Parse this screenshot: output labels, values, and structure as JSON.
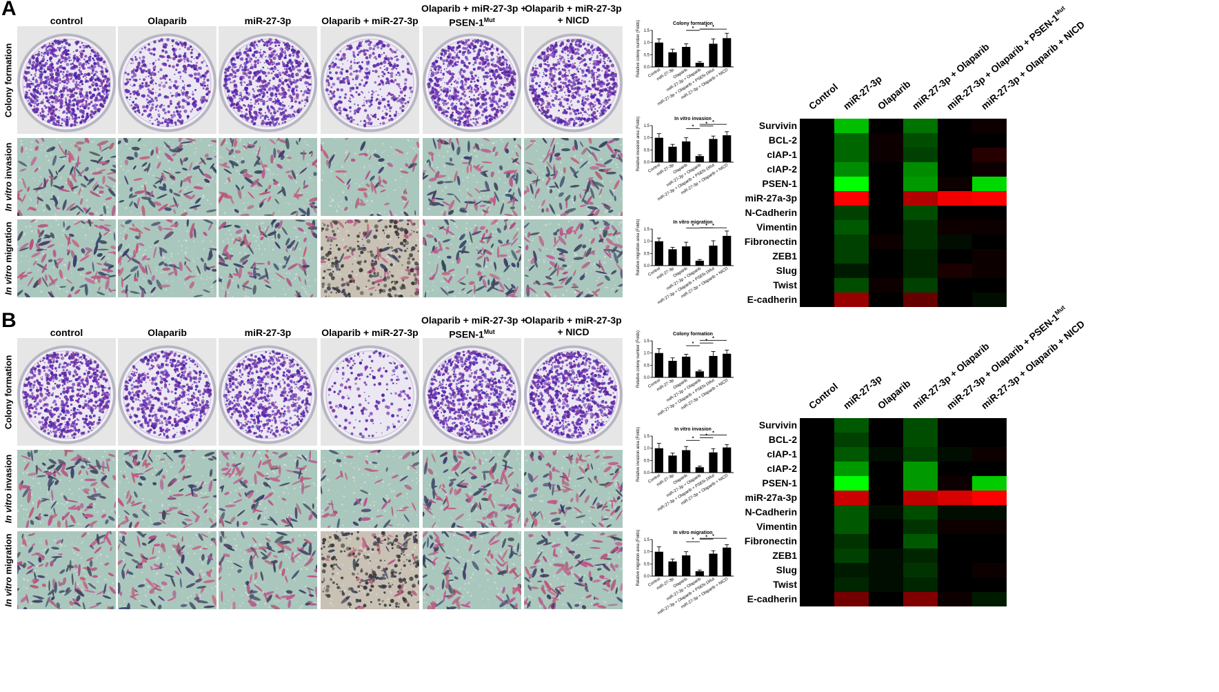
{
  "panels": [
    {
      "label": "A",
      "groups": [
        "control",
        "Olaparib",
        "miR-27-3p",
        "Olaparib + miR-27-3p",
        "Olaparib + miR-27-3p + PSEN-1Mut",
        "Olaparib + miR-27-3p + NICD"
      ],
      "group_headers": [
        {
          "l1": "",
          "l2": "control",
          "sup": ""
        },
        {
          "l1": "",
          "l2": "Olaparib",
          "sup": ""
        },
        {
          "l1": "",
          "l2": "miR-27-3p",
          "sup": ""
        },
        {
          "l1": "",
          "l2": "Olaparib + miR-27-3p",
          "sup": ""
        },
        {
          "l1": "Olaparib + miR-27-3p +",
          "l2": "PSEN-1",
          "sup": "Mut"
        },
        {
          "l1": "Olaparib + miR-27-3p",
          "l2": "+ NICD",
          "sup": ""
        }
      ],
      "row_labels": [
        {
          "pre": "",
          "em": "",
          "post": "Colony formation"
        },
        {
          "pre": "",
          "em": "In vitro",
          "post": " invasion"
        },
        {
          "pre": "",
          "em": "In vitro",
          "post": " migration"
        }
      ],
      "charts": [
        {
          "type": "bar",
          "title": "Colony formation",
          "ylabel": "Relative colony number (Folds)",
          "ylim": [
            0,
            1.5
          ],
          "yticks": [
            0.0,
            0.5,
            1.0,
            1.5
          ],
          "categories": [
            "Control",
            "miR-27-3p",
            "Olaparib",
            "miR-27-3p + Olaparib",
            "miR-27-3p + Olaparib + PSEN-1Mut",
            "miR-27-3p + Olaparib + NICD"
          ],
          "values": [
            1.0,
            0.6,
            0.82,
            0.17,
            0.95,
            1.18
          ],
          "errors": [
            0.15,
            0.13,
            0.13,
            0.05,
            0.2,
            0.2
          ],
          "significance": [
            {
              "from": 2,
              "to": 3,
              "label": "*"
            },
            {
              "from": 3,
              "to": 4,
              "label": "*"
            },
            {
              "from": 3,
              "to": 5,
              "label": "*"
            }
          ]
        },
        {
          "type": "bar",
          "title": "In vitro invasion",
          "ylabel": "Relative invasion area (Folds)",
          "ylim": [
            0,
            1.5
          ],
          "yticks": [
            0.0,
            0.5,
            1.0,
            1.5
          ],
          "categories": [
            "Control",
            "miR-27-3p",
            "Olaparib",
            "miR-27-3p + Olaparib",
            "miR-27-3p + Olaparib + PSEN-1Mut",
            "miR-27-3p + Olaparib + NICD"
          ],
          "values": [
            1.0,
            0.63,
            0.85,
            0.25,
            0.95,
            1.1
          ],
          "errors": [
            0.17,
            0.1,
            0.15,
            0.05,
            0.12,
            0.15
          ],
          "significance": [
            {
              "from": 2,
              "to": 3,
              "label": "*"
            },
            {
              "from": 3,
              "to": 4,
              "label": "*"
            },
            {
              "from": 3,
              "to": 5,
              "label": "*"
            }
          ]
        },
        {
          "type": "bar",
          "title": "In vitro migration",
          "ylabel": "Relative migration area (Folds)",
          "ylim": [
            0,
            1.5
          ],
          "yticks": [
            0.0,
            0.5,
            1.0,
            1.5
          ],
          "categories": [
            "Control",
            "miR-27-3p",
            "Olaparib",
            "miR-27-3p + Olaparib",
            "miR-27-3p + Olaparib + PSEN-1Mut",
            "miR-27-3p + Olaparib + NICD"
          ],
          "values": [
            1.0,
            0.67,
            0.79,
            0.2,
            0.82,
            1.22
          ],
          "errors": [
            0.13,
            0.08,
            0.17,
            0.05,
            0.2,
            0.2
          ],
          "significance": [
            {
              "from": 2,
              "to": 3,
              "label": "*"
            },
            {
              "from": 3,
              "to": 4,
              "label": "*"
            },
            {
              "from": 3,
              "to": 5,
              "label": "*"
            }
          ]
        }
      ],
      "heatmap": {
        "columns": [
          "Control",
          "miR-27-3p",
          "Olaparib",
          "miR-27-3p + Olaparib",
          "miR-27-3p + Olaparib + PSEN-1",
          "miR-27-3p + Olaparib + NICD"
        ],
        "column_sup": [
          "",
          "",
          "",
          "",
          "Mut",
          ""
        ],
        "rows": [
          "Survivin",
          "BCL-2",
          "cIAP-1",
          "cIAP-2",
          "PSEN-1",
          "miR-27a-3p",
          "N-Cadherin",
          "Vimentin",
          "Fibronectin",
          "ZEB1",
          "Slug",
          "Twist",
          "E-cadherin"
        ],
        "values": [
          [
            0,
            0.75,
            0,
            0.45,
            0,
            -0.05
          ],
          [
            0,
            0.4,
            -0.05,
            0.3,
            0,
            0
          ],
          [
            0,
            0.4,
            -0.05,
            0.25,
            0,
            -0.15
          ],
          [
            0,
            0.55,
            0,
            0.55,
            0,
            -0.05
          ],
          [
            0,
            1.0,
            0,
            0.6,
            -0.05,
            0.85
          ],
          [
            0,
            -1.0,
            0,
            -0.7,
            -0.95,
            -1.0
          ],
          [
            0,
            0.25,
            0,
            0.3,
            0,
            0
          ],
          [
            0,
            0.35,
            0,
            0.2,
            -0.05,
            -0.05
          ],
          [
            0,
            0.25,
            -0.05,
            0.2,
            0.05,
            0
          ],
          [
            0,
            0.25,
            0,
            0.15,
            0,
            -0.05
          ],
          [
            0,
            0.1,
            0,
            0.15,
            -0.1,
            -0.05
          ],
          [
            0,
            0.3,
            -0.05,
            0.25,
            0,
            0
          ],
          [
            0,
            -0.6,
            0,
            -0.4,
            0,
            0.05
          ]
        ]
      }
    },
    {
      "label": "B",
      "groups": [
        "control",
        "Olaparib",
        "miR-27-3p",
        "Olaparib + miR-27-3p",
        "Olaparib + miR-27-3p + PSEN-1Mut",
        "Olaparib + miR-27-3p + NICD"
      ],
      "group_headers": [
        {
          "l1": "",
          "l2": "control",
          "sup": ""
        },
        {
          "l1": "",
          "l2": "Olaparib",
          "sup": ""
        },
        {
          "l1": "",
          "l2": "miR-27-3p",
          "sup": ""
        },
        {
          "l1": "",
          "l2": "Olaparib + miR-27-3p",
          "sup": ""
        },
        {
          "l1": "Olaparib + miR-27-3p +",
          "l2": "PSEN-1",
          "sup": "Mut"
        },
        {
          "l1": "Olaparib + miR-27-3p",
          "l2": "+ NICD",
          "sup": ""
        }
      ],
      "row_labels": [
        {
          "pre": "",
          "em": "",
          "post": "Colony formation"
        },
        {
          "pre": "",
          "em": "In vitro",
          "post": " invasion"
        },
        {
          "pre": "",
          "em": "In vitro",
          "post": " migration"
        }
      ],
      "charts": [
        {
          "type": "bar",
          "title": "Colony formation",
          "ylabel": "Relative colony number (Folds)",
          "ylim": [
            0,
            1.5
          ],
          "yticks": [
            0.0,
            0.5,
            1.0,
            1.5
          ],
          "categories": [
            "Control",
            "miR-27-3p",
            "Olaparib",
            "miR-27-3p + Olaparib",
            "miR-27-3p + Olaparib + PSEN-1Mut",
            "miR-27-3p + Olaparib + NICD"
          ],
          "values": [
            1.0,
            0.68,
            0.85,
            0.25,
            0.88,
            0.97
          ],
          "errors": [
            0.18,
            0.12,
            0.1,
            0.05,
            0.18,
            0.15
          ],
          "significance": [
            {
              "from": 2,
              "to": 3,
              "label": "*"
            },
            {
              "from": 3,
              "to": 4,
              "label": "*"
            },
            {
              "from": 3,
              "to": 5,
              "label": "*"
            }
          ]
        },
        {
          "type": "bar",
          "title": "In vitro invasion",
          "ylabel": "Relative invasion area (Folds)",
          "ylim": [
            0,
            1.5
          ],
          "yticks": [
            0.0,
            0.5,
            1.0,
            1.5
          ],
          "categories": [
            "Control",
            "miR-27-3p",
            "Olaparib",
            "miR-27-3p + Olaparib",
            "miR-27-3p + Olaparib + PSEN-1Mut",
            "miR-27-3p + Olaparib + NICD"
          ],
          "values": [
            1.0,
            0.7,
            0.92,
            0.22,
            0.83,
            1.03
          ],
          "errors": [
            0.2,
            0.1,
            0.15,
            0.05,
            0.15,
            0.12
          ],
          "significance": [
            {
              "from": 2,
              "to": 3,
              "label": "*"
            },
            {
              "from": 3,
              "to": 4,
              "label": "*"
            },
            {
              "from": 3,
              "to": 5,
              "label": "*"
            }
          ]
        },
        {
          "type": "bar",
          "title": "In vitro migration",
          "ylabel": "Relative migration area (Folds)",
          "ylim": [
            0,
            1.5
          ],
          "yticks": [
            0.0,
            0.5,
            1.0,
            1.5
          ],
          "categories": [
            "Control",
            "miR-27-3p",
            "Olaparib",
            "miR-27-3p + Olaparib",
            "miR-27-3p + Olaparib + PSEN-1Mut",
            "miR-27-3p + Olaparib + NICD"
          ],
          "values": [
            1.0,
            0.6,
            0.85,
            0.2,
            0.92,
            1.17
          ],
          "errors": [
            0.2,
            0.1,
            0.15,
            0.05,
            0.12,
            0.12
          ],
          "significance": [
            {
              "from": 2,
              "to": 3,
              "label": "*"
            },
            {
              "from": 3,
              "to": 4,
              "label": "*"
            },
            {
              "from": 3,
              "to": 5,
              "label": "*"
            }
          ]
        }
      ],
      "heatmap": {
        "columns": [
          "Control",
          "miR-27-3p",
          "Olaparib",
          "miR-27-3p + Olaparib",
          "miR-27-3p + Olaparib + PSEN-1",
          "miR-27-3p + Olaparib + NICD"
        ],
        "column_sup": [
          "",
          "",
          "",
          "",
          "Mut",
          ""
        ],
        "rows": [
          "Survivin",
          "BCL-2",
          "cIAP-1",
          "cIAP-2",
          "PSEN-1",
          "miR-27a-3p",
          "N-Cadherin",
          "Vimentin",
          "Fibronectin",
          "ZEB1",
          "Slug",
          "Twist",
          "E-cadherin"
        ],
        "values": [
          [
            0,
            0.35,
            0,
            0.3,
            0,
            0
          ],
          [
            0,
            0.25,
            0,
            0.3,
            0,
            0
          ],
          [
            0,
            0.35,
            0.05,
            0.25,
            0.05,
            -0.05
          ],
          [
            0,
            0.6,
            0,
            0.6,
            0,
            0
          ],
          [
            0,
            1.0,
            0,
            0.6,
            -0.05,
            0.8
          ],
          [
            0,
            -0.8,
            0,
            -0.75,
            -0.85,
            -1.0
          ],
          [
            0,
            0.35,
            0.05,
            0.3,
            0.05,
            0.05
          ],
          [
            0,
            0.35,
            0,
            0.2,
            -0.05,
            -0.05
          ],
          [
            0,
            0.2,
            0,
            0.35,
            0,
            0
          ],
          [
            0,
            0.25,
            0.05,
            0.15,
            0,
            0
          ],
          [
            0,
            0.1,
            0.05,
            0.2,
            0,
            -0.05
          ],
          [
            0,
            0.15,
            0.05,
            0.15,
            0,
            0
          ],
          [
            0,
            -0.45,
            0,
            -0.5,
            -0.05,
            0.1
          ]
        ]
      }
    }
  ],
  "colors": {
    "up": "#00ff00",
    "down": "#ff0000",
    "zero": "#000000",
    "bar": "#000000",
    "crystal_violet": "#5a2d9a",
    "transwell_bg": "#a9c5bb",
    "cell_pink": "#b85d80",
    "cell_dark": "#3a3f5a"
  }
}
